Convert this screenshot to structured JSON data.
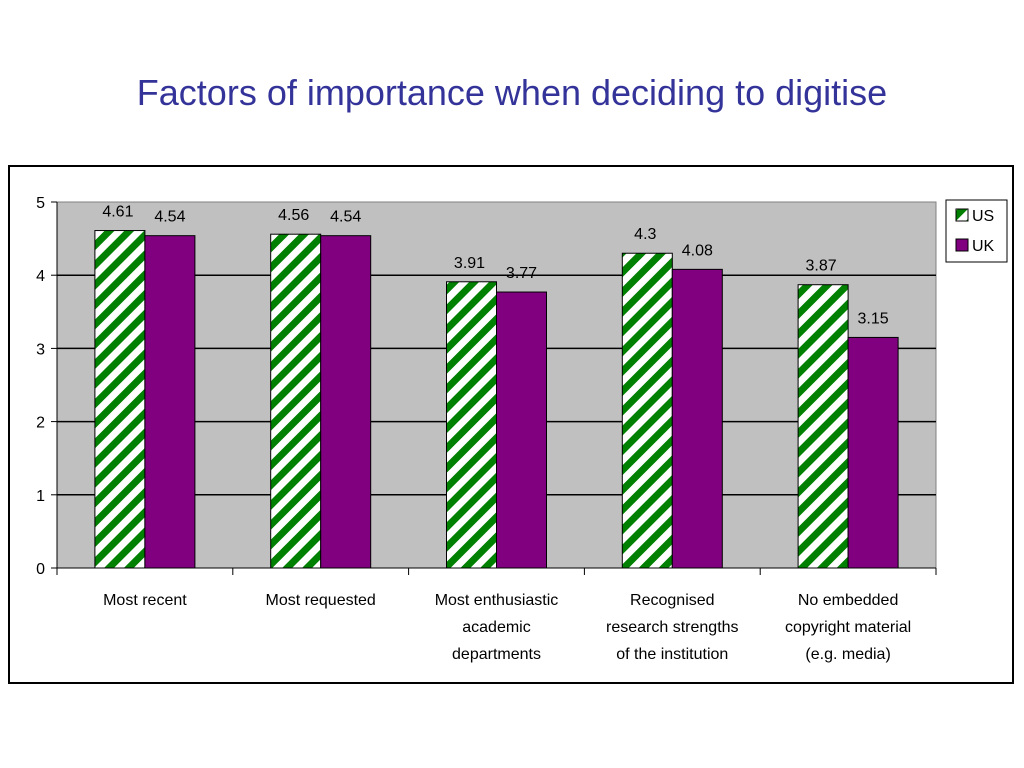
{
  "title": "Factors of importance when deciding to digitise",
  "colors": {
    "plot_background": "#C0C0C0",
    "us_stripe": "#008000",
    "us_base": "#ffffff",
    "uk_fill": "#800080",
    "title": "#333399"
  },
  "chart_data": {
    "type": "bar",
    "categories": [
      [
        "Most recent"
      ],
      [
        "Most requested"
      ],
      [
        "Most enthusiastic",
        "academic",
        "departments"
      ],
      [
        "Recognised",
        "research strengths",
        "of the institution"
      ],
      [
        "No embedded",
        "copyright material",
        "(e.g. media)"
      ]
    ],
    "series": [
      {
        "name": "US",
        "values": [
          4.61,
          4.56,
          3.91,
          4.3,
          3.87
        ],
        "labels": [
          "4.61",
          "4.56",
          "3.91",
          "4.3",
          "3.87"
        ]
      },
      {
        "name": "UK",
        "values": [
          4.54,
          4.54,
          3.77,
          4.08,
          3.15
        ],
        "labels": [
          "4.54",
          "4.54",
          "3.77",
          "4.08",
          "3.15"
        ]
      }
    ],
    "y_ticks": [
      "0",
      "1",
      "2",
      "3",
      "4",
      "5"
    ],
    "ylim": [
      0,
      5
    ],
    "grid": true,
    "legend": "right"
  }
}
